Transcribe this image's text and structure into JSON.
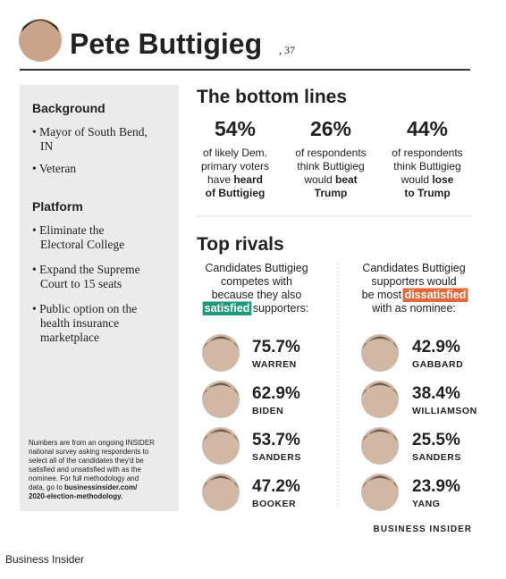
{
  "header": {
    "name": "Pete Buttigieg",
    "age": ", 37"
  },
  "sidebar": {
    "background_heading": "Background",
    "background_items": [
      [
        [
          "• Mayor of South Bend,"
        ],
        [
          "IN"
        ]
      ],
      [
        [
          "• Veteran"
        ]
      ]
    ],
    "platform_heading": "Platform",
    "platform_items": [
      [
        [
          "• Eliminate the"
        ],
        [
          "Electoral College"
        ]
      ],
      [
        [
          "• Expand the Supreme"
        ],
        [
          "Court to 15 seats"
        ]
      ],
      [
        [
          "• Public option on the"
        ],
        [
          "health insurance"
        ],
        [
          "marketplace"
        ]
      ]
    ],
    "footnote": [
      [
        {
          "t": "Numbers are from an ongoing INSIDER"
        }
      ],
      [
        {
          "t": "national survey asking respondents to"
        }
      ],
      [
        {
          "t": "select all of the candidates they'd be"
        }
      ],
      [
        {
          "t": "satisfied and unsatisfied with as the"
        }
      ],
      [
        {
          "t": "nominee. For full methodology and"
        }
      ],
      [
        {
          "t": "data, go to "
        },
        {
          "t": "businessinsider.com/",
          "b": true
        }
      ],
      [
        {
          "t": "2020-election-methodology.",
          "b": true
        }
      ]
    ]
  },
  "bottom_lines": {
    "title": "The bottom lines",
    "color": "#2a62b0",
    "stats": [
      {
        "value": "54%",
        "lines": [
          [
            {
              "t": "of likely Dem."
            }
          ],
          [
            {
              "t": "primary voters"
            }
          ],
          [
            {
              "t": "have "
            },
            {
              "t": "heard",
              "b": true
            }
          ],
          [
            {
              "t": "of Buttigieg",
              "b": true
            }
          ]
        ]
      },
      {
        "value": "26%",
        "lines": [
          [
            {
              "t": "of respondents"
            }
          ],
          [
            {
              "t": "think Buttigieg"
            }
          ],
          [
            {
              "t": "would "
            },
            {
              "t": "beat",
              "b": true
            }
          ],
          [
            {
              "t": "Trump",
              "b": true
            }
          ]
        ]
      },
      {
        "value": "44%",
        "lines": [
          [
            {
              "t": "of respondents"
            }
          ],
          [
            {
              "t": "think Buttigieg"
            }
          ],
          [
            {
              "t": "would "
            },
            {
              "t": "lose",
              "b": true
            }
          ],
          [
            {
              "t": "to Trump",
              "b": true
            }
          ]
        ]
      }
    ]
  },
  "top_rivals": {
    "title": "Top rivals",
    "columns": [
      {
        "color": "#1e9a7a",
        "caption": [
          [
            {
              "t": "Candidates Buttigieg"
            }
          ],
          [
            {
              "t": "competes with"
            }
          ],
          [
            {
              "t": "because they also"
            }
          ],
          [
            {
              "t": "satisfied",
              "hl": true
            },
            {
              "t": " supporters:"
            }
          ]
        ],
        "rivals": [
          {
            "pct": "75.7%",
            "name": "WARREN"
          },
          {
            "pct": "62.9%",
            "name": "BIDEN"
          },
          {
            "pct": "53.7%",
            "name": "SANDERS"
          },
          {
            "pct": "47.2%",
            "name": "BOOKER"
          }
        ]
      },
      {
        "color": "#e0683a",
        "caption": [
          [
            {
              "t": "Candidates Buttigieg"
            }
          ],
          [
            {
              "t": "supporters would"
            }
          ],
          [
            {
              "t": "be most "
            },
            {
              "t": "dissatisfied",
              "hl": true
            }
          ],
          [
            {
              "t": "with as nominee:"
            }
          ]
        ],
        "rivals": [
          {
            "pct": "42.9%",
            "name": "GABBARD"
          },
          {
            "pct": "38.4%",
            "name": "WILLIAMSON"
          },
          {
            "pct": "25.5%",
            "name": "SANDERS"
          },
          {
            "pct": "23.9%",
            "name": "YANG"
          }
        ]
      }
    ]
  },
  "brand": "BUSINESS INSIDER",
  "source": "Business Insider"
}
